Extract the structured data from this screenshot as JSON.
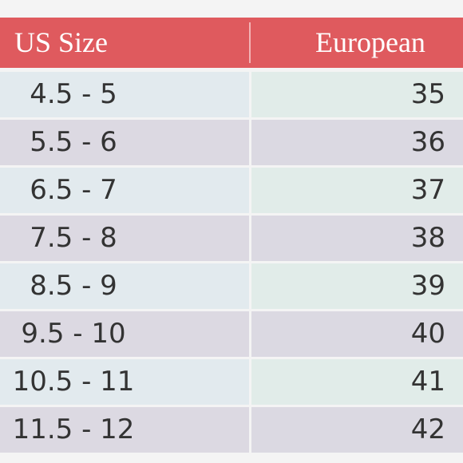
{
  "table": {
    "header": [
      "US Size",
      "European"
    ],
    "rows": [
      [
        "4.5 - 5",
        35
      ],
      [
        "5.5 - 6",
        36
      ],
      [
        "6.5 - 7",
        37
      ],
      [
        "7.5 - 8",
        38
      ],
      [
        "8.5 - 9",
        39
      ],
      [
        "9.5 - 10",
        40
      ],
      [
        "10.5 - 11",
        41
      ],
      [
        "11.5 - 12",
        42
      ]
    ]
  }
}
